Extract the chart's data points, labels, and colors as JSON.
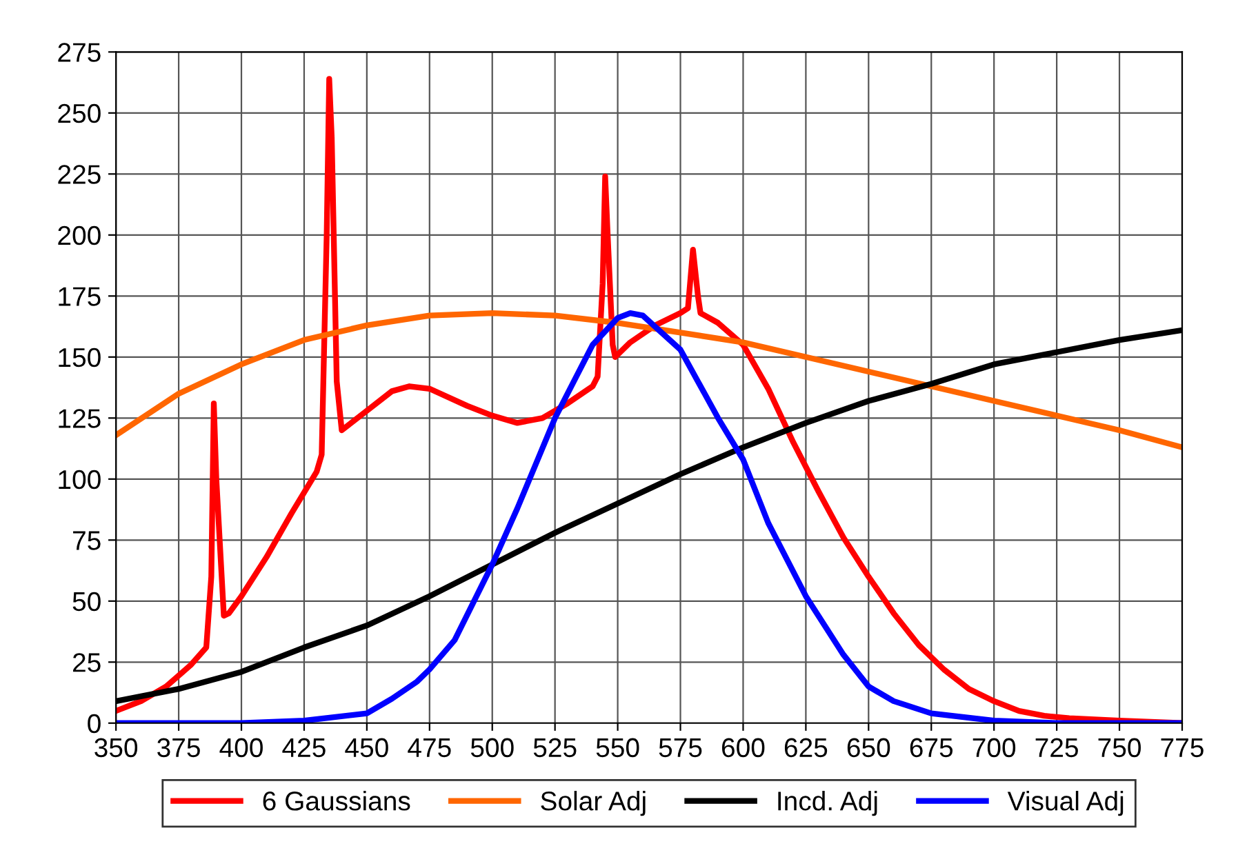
{
  "chart_data": {
    "type": "line",
    "xlim": [
      350,
      775
    ],
    "ylim": [
      0,
      275
    ],
    "xticks": [
      350,
      375,
      400,
      425,
      450,
      475,
      500,
      525,
      550,
      575,
      600,
      625,
      650,
      675,
      700,
      725,
      750,
      775
    ],
    "yticks": [
      0,
      25,
      50,
      75,
      100,
      125,
      150,
      175,
      200,
      225,
      250,
      275
    ],
    "grid": true,
    "legend": "bottom",
    "marker": "none",
    "line_style": "solid",
    "series": [
      {
        "name": "6 Gaussians",
        "color": "#ff0000",
        "x": [
          350,
          360,
          370,
          380,
          386,
          388,
          389,
          390,
          393,
          395,
          400,
          410,
          420,
          430,
          432,
          434,
          435,
          436,
          438,
          440,
          450,
          460,
          467,
          475,
          490,
          500,
          510,
          520,
          530,
          540,
          542,
          544,
          545,
          546,
          548,
          549,
          555,
          565,
          575,
          578,
          580,
          582,
          583,
          590,
          600,
          610,
          620,
          630,
          640,
          650,
          660,
          670,
          680,
          690,
          700,
          710,
          720,
          730,
          750,
          775
        ],
        "values": [
          5,
          9,
          15,
          24,
          31,
          60,
          131,
          100,
          44,
          45,
          52,
          68,
          86,
          103,
          110,
          200,
          264,
          240,
          140,
          120,
          128,
          136,
          138,
          137,
          130,
          126,
          123,
          125,
          131,
          138,
          142,
          180,
          224,
          200,
          155,
          150,
          156,
          163,
          168,
          170,
          194,
          175,
          168,
          164,
          155,
          137,
          115,
          95,
          76,
          60,
          45,
          32,
          22,
          14,
          9,
          5,
          3,
          2,
          1,
          0
        ]
      },
      {
        "name": "Solar Adj",
        "color": "#ff6600",
        "x": [
          350,
          375,
          400,
          425,
          450,
          475,
          500,
          525,
          550,
          575,
          600,
          625,
          650,
          675,
          700,
          725,
          750,
          775
        ],
        "values": [
          118,
          135,
          147,
          157,
          163,
          167,
          168,
          167,
          164,
          160,
          156,
          150,
          144,
          138,
          132,
          126,
          120,
          113
        ]
      },
      {
        "name": "Incd. Adj",
        "color": "#000000",
        "x": [
          350,
          375,
          400,
          425,
          450,
          475,
          500,
          525,
          550,
          575,
          600,
          625,
          650,
          675,
          700,
          725,
          750,
          775
        ],
        "values": [
          9,
          14,
          21,
          31,
          40,
          52,
          65,
          78,
          90,
          102,
          113,
          123,
          132,
          139,
          147,
          152,
          157,
          161
        ]
      },
      {
        "name": "Visual Adj",
        "color": "#0000ff",
        "x": [
          350,
          400,
          425,
          450,
          460,
          470,
          475,
          485,
          500,
          510,
          525,
          540,
          550,
          555,
          560,
          575,
          590,
          600,
          610,
          625,
          640,
          650,
          660,
          675,
          700,
          725,
          775
        ],
        "values": [
          0,
          0,
          1,
          4,
          10,
          17,
          22,
          34,
          65,
          88,
          125,
          155,
          166,
          168,
          167,
          153,
          125,
          108,
          82,
          52,
          28,
          15,
          9,
          4,
          1,
          0,
          0
        ]
      }
    ]
  }
}
